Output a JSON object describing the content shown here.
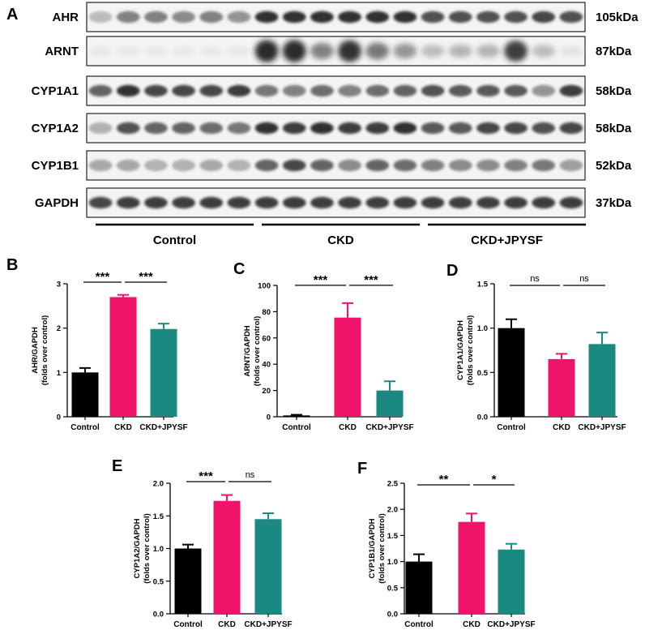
{
  "panel_a": {
    "label": "A",
    "rows": [
      {
        "protein": "AHR",
        "size": "105kDa",
        "levels": [
          0.25,
          0.55,
          0.55,
          0.5,
          0.55,
          0.45,
          0.95,
          0.95,
          0.95,
          0.95,
          0.95,
          0.95,
          0.8,
          0.8,
          0.8,
          0.8,
          0.85,
          0.8
        ]
      },
      {
        "protein": "ARNT",
        "size": "87kDa",
        "levels": [
          0.03,
          0.03,
          0.03,
          0.03,
          0.03,
          0.03,
          1.0,
          1.0,
          0.55,
          0.95,
          0.6,
          0.45,
          0.25,
          0.3,
          0.3,
          0.9,
          0.25,
          0.05
        ]
      },
      {
        "protein": "CYP1A1",
        "size": "58kDa",
        "levels": [
          0.7,
          0.95,
          0.85,
          0.85,
          0.85,
          0.9,
          0.6,
          0.55,
          0.65,
          0.55,
          0.65,
          0.7,
          0.8,
          0.75,
          0.75,
          0.75,
          0.45,
          0.9
        ]
      },
      {
        "protein": "CYP1A2",
        "size": "58kDa",
        "levels": [
          0.3,
          0.8,
          0.7,
          0.7,
          0.65,
          0.6,
          0.95,
          0.9,
          0.95,
          0.9,
          0.9,
          0.95,
          0.75,
          0.75,
          0.85,
          0.85,
          0.8,
          0.85
        ]
      },
      {
        "protein": "CYP1B1",
        "size": "52kDa",
        "levels": [
          0.35,
          0.35,
          0.3,
          0.3,
          0.35,
          0.3,
          0.7,
          0.85,
          0.7,
          0.5,
          0.7,
          0.65,
          0.55,
          0.5,
          0.5,
          0.55,
          0.6,
          0.4
        ]
      },
      {
        "protein": "GAPDH",
        "size": "37kDa",
        "levels": [
          0.85,
          0.9,
          0.9,
          0.9,
          0.9,
          0.9,
          0.9,
          0.9,
          0.9,
          0.9,
          0.9,
          0.9,
          0.9,
          0.9,
          0.9,
          0.9,
          0.9,
          0.9
        ]
      }
    ],
    "groups": [
      "Control",
      "CKD",
      "CKD+JPYSF"
    ]
  },
  "chart_data": [
    {
      "type": "bar",
      "panel": "B",
      "categories": [
        "Control",
        "CKD",
        "CKD+JPYSF"
      ],
      "values": [
        1.0,
        2.7,
        1.98
      ],
      "errors": [
        0.1,
        0.05,
        0.12
      ],
      "ylabel": [
        "AHR/GAPDH",
        "(folds over control)"
      ],
      "ylim": [
        0,
        3
      ],
      "yticks": [
        0,
        1,
        2,
        3
      ],
      "ytick_labels": [
        "0",
        "1",
        "2",
        "3"
      ],
      "significance": [
        "***",
        "***"
      ],
      "colors": [
        "#000000",
        "#f0136a",
        "#1a8a80"
      ]
    },
    {
      "type": "bar",
      "panel": "C",
      "categories": [
        "Control",
        "CKD",
        "CKD+JPYSF"
      ],
      "values": [
        1.0,
        75.5,
        20.0
      ],
      "errors": [
        0.5,
        11.0,
        7.0
      ],
      "ylabel": [
        "ARNT/GAPDH",
        "(folds over control)"
      ],
      "ylim": [
        0,
        100
      ],
      "yticks": [
        0,
        20,
        40,
        60,
        80,
        100
      ],
      "ytick_labels": [
        "0",
        "20",
        "40",
        "60",
        "80",
        "100"
      ],
      "significance": [
        "***",
        "***"
      ],
      "colors": [
        "#000000",
        "#f0136a",
        "#1a8a80"
      ]
    },
    {
      "type": "bar",
      "panel": "D",
      "categories": [
        "Control",
        "CKD",
        "CKD+JPYSF"
      ],
      "values": [
        1.0,
        0.65,
        0.82
      ],
      "errors": [
        0.1,
        0.06,
        0.13
      ],
      "ylabel": [
        "CYP1A1/GAPDH",
        "(folds over control)"
      ],
      "ylim": [
        0,
        1.5
      ],
      "yticks": [
        0,
        0.5,
        1.0,
        1.5
      ],
      "ytick_labels": [
        "0.0",
        "0.5",
        "1.0",
        "1.5"
      ],
      "significance": [
        "ns",
        "ns"
      ],
      "colors": [
        "#000000",
        "#f0136a",
        "#1a8a80"
      ]
    },
    {
      "type": "bar",
      "panel": "E",
      "categories": [
        "Control",
        "CKD",
        "CKD+JPYSF"
      ],
      "values": [
        1.0,
        1.73,
        1.45
      ],
      "errors": [
        0.06,
        0.09,
        0.09
      ],
      "ylabel": [
        "CYP1A2/GAPDH",
        "(folds over control)"
      ],
      "ylim": [
        0,
        2.0
      ],
      "yticks": [
        0,
        0.5,
        1.0,
        1.5,
        2.0
      ],
      "ytick_labels": [
        "0.0",
        "0.5",
        "1.0",
        "1.5",
        "2.0"
      ],
      "significance": [
        "***",
        "ns"
      ],
      "colors": [
        "#000000",
        "#f0136a",
        "#1a8a80"
      ]
    },
    {
      "type": "bar",
      "panel": "F",
      "categories": [
        "Control",
        "CKD",
        "CKD+JPYSF"
      ],
      "values": [
        1.0,
        1.76,
        1.23
      ],
      "errors": [
        0.14,
        0.16,
        0.11
      ],
      "ylabel": [
        "CYP1B1/GAPDH",
        "(folds over control)"
      ],
      "ylim": [
        0,
        2.5
      ],
      "yticks": [
        0,
        0.5,
        1.0,
        1.5,
        2.0,
        2.5
      ],
      "ytick_labels": [
        "0.0",
        "0.5",
        "1.0",
        "1.5",
        "2.0",
        "2.5"
      ],
      "significance": [
        "**",
        "*"
      ],
      "colors": [
        "#000000",
        "#f0136a",
        "#1a8a80"
      ]
    }
  ]
}
